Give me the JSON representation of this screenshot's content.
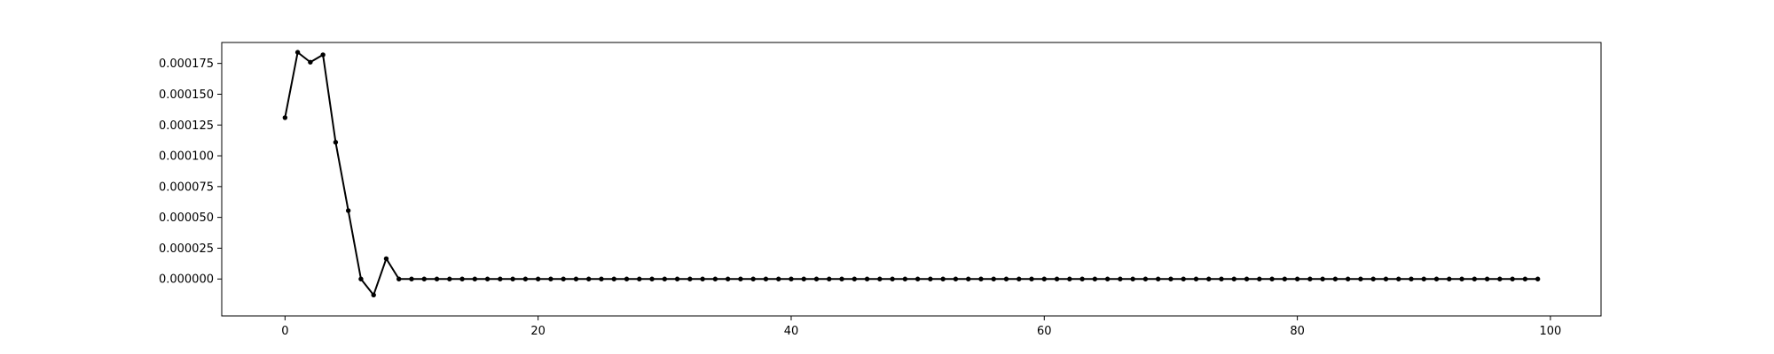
{
  "chart_data": {
    "type": "line",
    "title": "",
    "xlabel": "",
    "ylabel": "",
    "xlim": [
      -5,
      104
    ],
    "ylim": [
      -3e-05,
      0.000192
    ],
    "grid": false,
    "legend": "none",
    "line_color": "#000000",
    "marker": "dot",
    "x_ticks": [
      0,
      20,
      40,
      60,
      80,
      100
    ],
    "x_tick_labels": [
      "0",
      "20",
      "40",
      "60",
      "80",
      "100"
    ],
    "y_ticks": [
      0.0,
      2.5e-05,
      5e-05,
      7.5e-05,
      0.0001,
      0.000125,
      0.00015,
      0.000175
    ],
    "y_tick_labels": [
      "0.000000",
      "0.000025",
      "0.000050",
      "0.000075",
      "0.000100",
      "0.000125",
      "0.000150",
      "0.000175"
    ],
    "series": [
      {
        "x": [
          0,
          1,
          2,
          3,
          4,
          5,
          6,
          7,
          8,
          9,
          10,
          11,
          12,
          13,
          14,
          15,
          16,
          17,
          18,
          19,
          20,
          21,
          22,
          23,
          24,
          25,
          26,
          27,
          28,
          29,
          30,
          31,
          32,
          33,
          34,
          35,
          36,
          37,
          38,
          39,
          40,
          41,
          42,
          43,
          44,
          45,
          46,
          47,
          48,
          49,
          50,
          51,
          52,
          53,
          54,
          55,
          56,
          57,
          58,
          59,
          60,
          61,
          62,
          63,
          64,
          65,
          66,
          67,
          68,
          69,
          70,
          71,
          72,
          73,
          74,
          75,
          76,
          77,
          78,
          79,
          80,
          81,
          82,
          83,
          84,
          85,
          86,
          87,
          88,
          89,
          90,
          91,
          92,
          93,
          94,
          95,
          96,
          97,
          98,
          99
        ],
        "y": [
          0.000131,
          0.000184,
          0.000176,
          0.000182,
          0.000111,
          5.55e-05,
          0.0,
          -1.3e-05,
          1.65e-05,
          0.0,
          0,
          0,
          0,
          0,
          0,
          0,
          0,
          0,
          0,
          0,
          0,
          0,
          0,
          0,
          0,
          0,
          0,
          0,
          0,
          0,
          0,
          0,
          0,
          0,
          0,
          0,
          0,
          0,
          0,
          0,
          0,
          0,
          0,
          0,
          0,
          0,
          0,
          0,
          0,
          0,
          0,
          0,
          0,
          0,
          0,
          0,
          0,
          0,
          0,
          0,
          0,
          0,
          0,
          0,
          0,
          0,
          0,
          0,
          0,
          0,
          0,
          0,
          0,
          0,
          0,
          0,
          0,
          0,
          0,
          0,
          0,
          0,
          0,
          0,
          0,
          0,
          0,
          0,
          0,
          0,
          0,
          0,
          0,
          0,
          0,
          0,
          0,
          0,
          0,
          0
        ]
      }
    ]
  }
}
